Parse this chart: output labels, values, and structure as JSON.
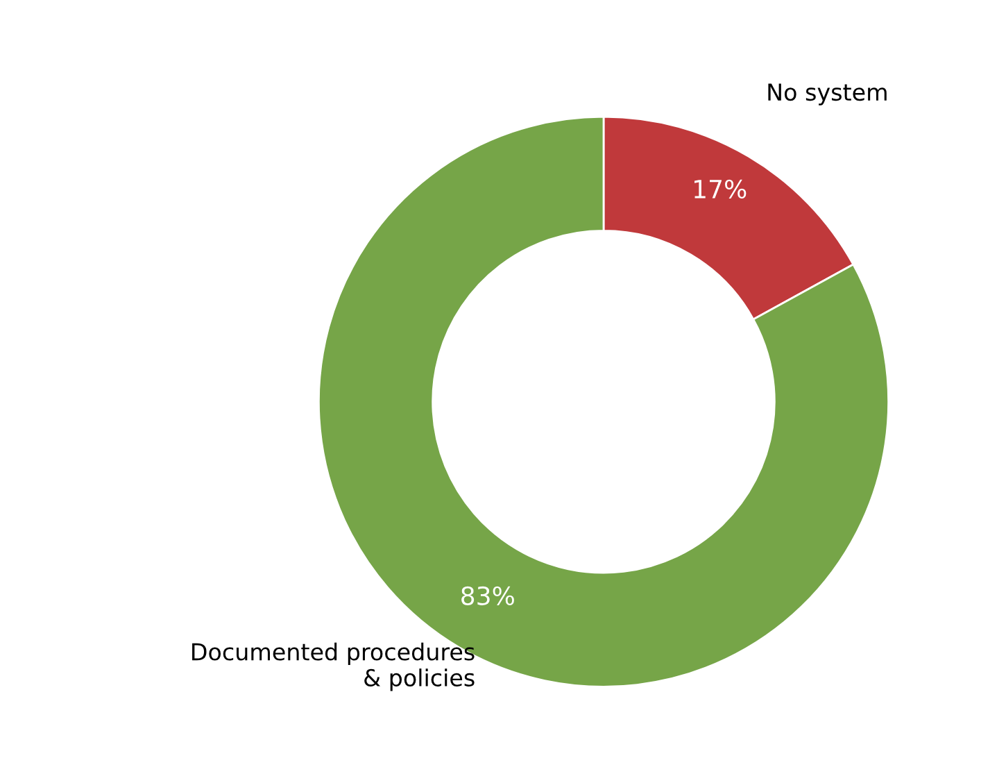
{
  "chart_data": {
    "type": "donut",
    "categories": [
      "No system",
      "Documented procedures\n& policies"
    ],
    "values": [
      17,
      83
    ],
    "colors": [
      "#c0393b",
      "#76a548"
    ],
    "value_labels": [
      "17%",
      "83%"
    ],
    "legend": false
  }
}
